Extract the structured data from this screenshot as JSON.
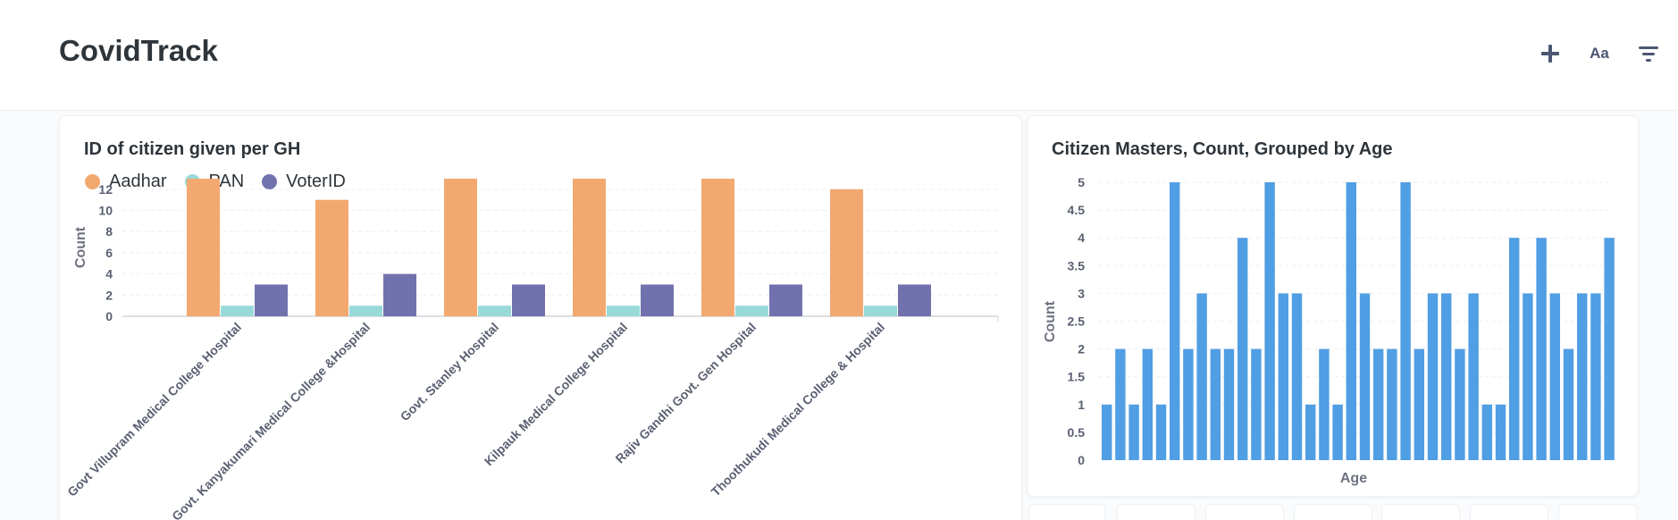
{
  "header": {
    "title": "CovidTrack",
    "add_icon": "plus-icon",
    "text_icon_label": "Aa",
    "filter_icon": "filter-icon"
  },
  "colors": {
    "aadhar": "#f2a86f",
    "pan": "#98d9d9",
    "voterid": "#7172ad",
    "age_bars": "#509ee3"
  },
  "chart_data": [
    {
      "type": "bar",
      "title": "ID of citizen given per GH",
      "xlabel": "",
      "ylabel": "Count",
      "legend_position": "top-left",
      "grid": true,
      "ylim": [
        0,
        13
      ],
      "yticks": [
        0,
        2,
        4,
        6,
        8,
        10,
        12
      ],
      "categories": [
        "Govt Villupram Medical College Hospital",
        "Govt. Kanyakumari Medical College &Hospital",
        "Govt. Stanley Hospital",
        "Kilpauk Medical College Hospital",
        "Rajiv Gandhi Govt. Gen Hospital",
        "Thoothukudi Medical College & Hospital"
      ],
      "series": [
        {
          "name": "Aadhar",
          "values": [
            13,
            11,
            13,
            13,
            13,
            12
          ]
        },
        {
          "name": "PAN",
          "values": [
            1,
            1,
            1,
            1,
            1,
            1
          ]
        },
        {
          "name": "VoterID",
          "values": [
            3,
            4,
            3,
            3,
            3,
            3
          ]
        }
      ]
    },
    {
      "type": "bar",
      "title": "Citizen Masters, Count, Grouped by Age",
      "xlabel": "Age",
      "ylabel": "Count",
      "grid": true,
      "ylim": [
        0,
        5
      ],
      "yticks": [
        "0",
        "0.5",
        "1",
        "1.5",
        "2",
        "2.5",
        "3",
        "3.5",
        "4",
        "4.5",
        "5"
      ],
      "values": [
        1,
        2,
        1,
        2,
        1,
        5,
        2,
        3,
        2,
        2,
        4,
        2,
        5,
        3,
        3,
        1,
        2,
        1,
        5,
        3,
        2,
        2,
        5,
        2,
        3,
        3,
        2,
        3,
        1,
        1,
        4,
        3,
        4,
        3,
        2,
        3,
        3,
        4
      ]
    }
  ]
}
